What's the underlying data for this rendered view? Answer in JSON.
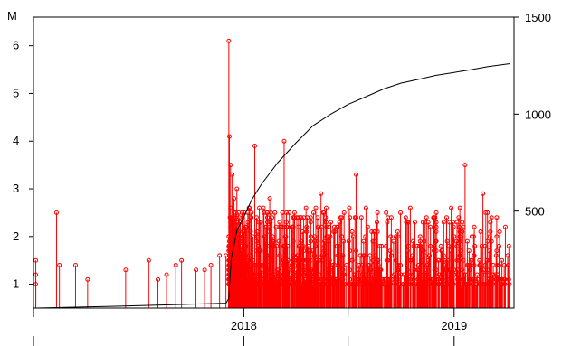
{
  "chart_data": {
    "type": "line",
    "title": "",
    "left_axis": {
      "unit_label": "M",
      "range": [
        0.5,
        6.6
      ],
      "ticks": [
        "1",
        "2",
        "3",
        "4",
        "5",
        "6"
      ]
    },
    "right_axis": {
      "range": [
        0,
        1500
      ],
      "ticks": [
        "500",
        "1000",
        "1500"
      ]
    },
    "x_axis": {
      "range": [
        "2017-01-01",
        "2019-04-15"
      ],
      "ticks": [
        "2018",
        "2019"
      ],
      "major_tick_dates": [
        "2017-01-01",
        "2018-01-01",
        "2018-07-01",
        "2019-01-01"
      ]
    },
    "grid": false,
    "colors": {
      "stems": "#ff0000",
      "cumulative": "#000000"
    },
    "series": [
      {
        "type": "stems",
        "axis": "left",
        "sparse_points": [
          [
            "2017-01-05",
            1.5
          ],
          [
            "2017-01-05",
            1.2
          ],
          [
            "2017-01-05",
            1.0
          ],
          [
            "2017-02-10",
            2.5
          ],
          [
            "2017-02-15",
            1.4
          ],
          [
            "2017-03-15",
            1.4
          ],
          [
            "2017-04-05",
            1.1
          ],
          [
            "2017-06-10",
            1.3
          ],
          [
            "2017-07-20",
            1.5
          ],
          [
            "2017-08-05",
            1.1
          ],
          [
            "2017-08-20",
            1.2
          ],
          [
            "2017-09-05",
            1.4
          ],
          [
            "2017-09-15",
            1.5
          ],
          [
            "2017-10-10",
            1.3
          ],
          [
            "2017-10-25",
            1.3
          ],
          [
            "2017-11-05",
            1.4
          ],
          [
            "2017-11-20",
            1.6
          ],
          [
            "2017-12-01",
            1.6
          ]
        ],
        "dense_period": [
          "2017-12-06",
          "2019-04-08"
        ],
        "dense_point_count": 1050,
        "dense_range": [
          1.0,
          6.1
        ],
        "notable_points": [
          [
            "2017-12-06",
            6.1
          ],
          [
            "2017-12-07",
            4.1
          ],
          [
            "2017-12-09",
            3.5
          ],
          [
            "2017-12-12",
            3.3
          ],
          [
            "2017-12-15",
            2.8
          ],
          [
            "2017-12-20",
            3.0
          ],
          [
            "2018-01-20",
            3.9
          ],
          [
            "2018-02-15",
            2.8
          ],
          [
            "2018-03-12",
            4.0
          ],
          [
            "2018-05-15",
            2.9
          ],
          [
            "2018-07-15",
            3.3
          ],
          [
            "2018-12-01",
            2.3
          ],
          [
            "2019-01-20",
            3.5
          ],
          [
            "2019-02-20",
            2.9
          ],
          [
            "2019-03-20",
            1.8
          ]
        ]
      },
      {
        "type": "line",
        "name": "cumulative",
        "axis": "right",
        "points": [
          [
            "2017-01-05",
            0
          ],
          [
            "2017-06-01",
            10
          ],
          [
            "2017-12-01",
            25
          ],
          [
            "2017-12-06",
            50
          ],
          [
            "2017-12-10",
            250
          ],
          [
            "2017-12-20",
            400
          ],
          [
            "2018-01-01",
            470
          ],
          [
            "2018-01-15",
            560
          ],
          [
            "2018-02-01",
            640
          ],
          [
            "2018-03-01",
            750
          ],
          [
            "2018-04-01",
            850
          ],
          [
            "2018-05-01",
            940
          ],
          [
            "2018-06-01",
            1000
          ],
          [
            "2018-07-01",
            1050
          ],
          [
            "2018-08-01",
            1090
          ],
          [
            "2018-09-01",
            1130
          ],
          [
            "2018-10-01",
            1160
          ],
          [
            "2018-11-01",
            1180
          ],
          [
            "2018-12-01",
            1200
          ],
          [
            "2019-01-01",
            1215
          ],
          [
            "2019-02-01",
            1230
          ],
          [
            "2019-03-01",
            1245
          ],
          [
            "2019-04-08",
            1260
          ]
        ]
      }
    ]
  }
}
